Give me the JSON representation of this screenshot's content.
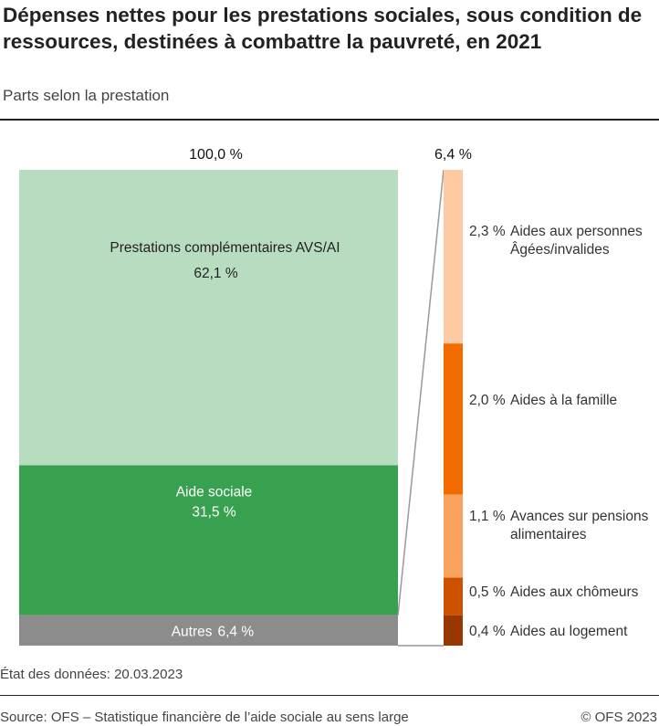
{
  "title": "Dépenses nettes pour les prestations sociales, sous condition de ressources, destinées à combattre la pauvreté, en 2021",
  "subtitle": "Parts selon la prestation",
  "chart_data": {
    "type": "bar",
    "stacked": true,
    "unit": "%",
    "main_bar": {
      "total_label": "100,0 %",
      "segments": [
        {
          "name": "Prestations complémentaires AVS/AI",
          "value": 62.1,
          "label": "62,1 %",
          "color": "#b8dcc0"
        },
        {
          "name": "Aide sociale",
          "value": 31.5,
          "label": "31,5 %",
          "color": "#38a14f"
        },
        {
          "name": "Autres",
          "value": 6.4,
          "label": "6,4 %",
          "color": "#8c8c8c"
        }
      ]
    },
    "breakdown_bar": {
      "total_label": "6,4 %",
      "segments": [
        {
          "name": "Aides aux personnes Âgées/invalides",
          "lines": [
            "Aides aux personnes",
            "Âgées/invalides"
          ],
          "value": 2.3,
          "label": "2,3 %",
          "color": "#fdcaa3"
        },
        {
          "name": "Aides à la famille",
          "lines": [
            "Aides à la famille"
          ],
          "value": 2.0,
          "label": "2,0 %",
          "color": "#f26b00"
        },
        {
          "name": "Avances sur pensions alimentaires",
          "lines": [
            "Avances sur pensions",
            "alimentaires"
          ],
          "value": 1.1,
          "label": "1,1 %",
          "color": "#f9a25e"
        },
        {
          "name": "Aides aux chômeurs",
          "lines": [
            "Aides aux chômeurs"
          ],
          "value": 0.5,
          "label": "0,5 %",
          "color": "#cc5200"
        },
        {
          "name": "Aides au logement",
          "lines": [
            "Aides au logement"
          ],
          "value": 0.4,
          "label": "0,4 %",
          "color": "#993700"
        }
      ]
    }
  },
  "footer": {
    "status": "État des données: 20.03.2023",
    "source": "Source: OFS – Statistique financière de l’aide sociale au sens large",
    "copyright": "© OFS 2023"
  }
}
